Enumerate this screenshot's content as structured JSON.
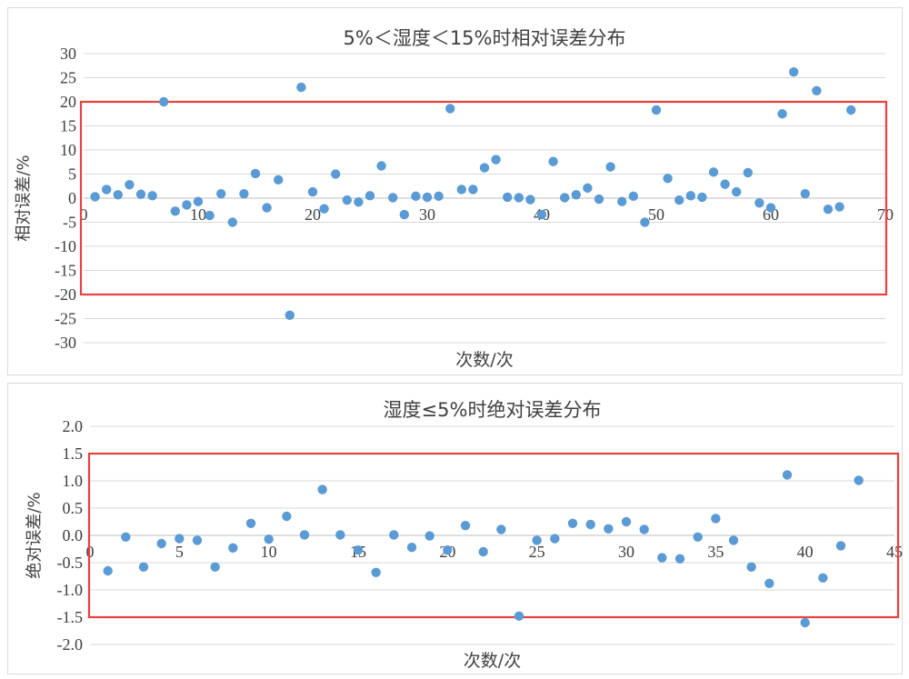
{
  "chart_data": [
    {
      "type": "scatter",
      "title": "5%＜湿度＜15%时相对误差分布",
      "xlabel": "次数/次",
      "ylabel": "相对误差/%",
      "xlim": [
        0,
        70
      ],
      "ylim": [
        -30,
        30
      ],
      "xticks": [
        "0",
        "10",
        "20",
        "30",
        "40",
        "50",
        "60",
        "70"
      ],
      "yticks": [
        "30",
        "25",
        "20",
        "15",
        "10",
        "5",
        "0",
        "-5",
        "-10",
        "-15",
        "-20",
        "-25",
        "-30"
      ],
      "grid": true,
      "marker_color": "#5b9bd5",
      "highlight_box": {
        "y_min": -20,
        "y_max": 20,
        "color": "#e8403f"
      },
      "x": [
        1,
        2,
        3,
        4,
        5,
        6,
        7,
        8,
        9,
        10,
        11,
        12,
        13,
        14,
        15,
        16,
        17,
        18,
        19,
        20,
        21,
        22,
        23,
        24,
        25,
        26,
        27,
        28,
        29,
        30,
        31,
        32,
        33,
        34,
        35,
        36,
        37,
        38,
        39,
        40,
        41,
        42,
        43,
        44,
        45,
        46,
        47,
        48,
        49,
        50,
        51,
        52,
        53,
        54,
        55,
        56,
        57,
        58,
        59,
        60,
        61,
        62,
        63,
        64,
        65,
        66,
        67
      ],
      "y": [
        0.3,
        1.8,
        0.7,
        2.8,
        0.8,
        0.5,
        20,
        -2.7,
        -1.4,
        -0.7,
        -3.6,
        0.9,
        -5,
        0.9,
        5.1,
        -2,
        3.8,
        -24.3,
        23,
        1.3,
        -2.2,
        5,
        -0.4,
        -0.8,
        0.5,
        6.7,
        0.1,
        -3.4,
        0.4,
        0.2,
        0.4,
        18.6,
        1.8,
        1.8,
        6.3,
        8,
        0.2,
        0.1,
        -0.3,
        -3.4,
        7.6,
        0.1,
        0.7,
        2.1,
        -0.2,
        6.5,
        -0.7,
        0.4,
        -5,
        18.3,
        4.1,
        -0.4,
        0.5,
        0.2,
        5.4,
        2.9,
        1.3,
        5.3,
        -1,
        -2,
        17.5,
        26.2,
        0.9,
        22.3,
        -2.3,
        -1.8,
        18.3
      ]
    },
    {
      "type": "scatter",
      "title": "湿度≤5%时绝对误差分布",
      "xlabel": "次数/次",
      "ylabel": "绝对误差/%",
      "xlim": [
        0,
        45
      ],
      "ylim": [
        -2.0,
        2.0
      ],
      "xticks": [
        "0",
        "5",
        "10",
        "15",
        "20",
        "25",
        "30",
        "35",
        "40",
        "45"
      ],
      "yticks": [
        "2.0",
        "1.5",
        "1.0",
        "0.5",
        "0.0",
        "-0.5",
        "-1.0",
        "-1.5",
        "-2.0"
      ],
      "grid": true,
      "marker_color": "#5b9bd5",
      "highlight_box": {
        "y_min": -1.5,
        "y_max": 1.5,
        "color": "#e8403f"
      },
      "x": [
        1,
        2,
        3,
        4,
        5,
        6,
        7,
        8,
        9,
        10,
        11,
        12,
        13,
        14,
        15,
        16,
        17,
        18,
        19,
        20,
        21,
        22,
        23,
        24,
        25,
        26,
        27,
        28,
        29,
        30,
        31,
        32,
        33,
        34,
        35,
        36,
        37,
        38,
        39,
        40,
        41,
        42,
        43
      ],
      "y": [
        -0.65,
        -0.03,
        -0.58,
        -0.15,
        -0.06,
        -0.09,
        -0.58,
        -0.23,
        0.22,
        -0.07,
        0.35,
        0.01,
        0.84,
        0.01,
        -0.27,
        -0.68,
        0.01,
        -0.22,
        -0.01,
        -0.27,
        0.18,
        -0.3,
        0.11,
        -1.48,
        -0.09,
        -0.06,
        0.22,
        0.2,
        0.12,
        0.25,
        0.11,
        -0.41,
        -0.43,
        -0.03,
        0.31,
        -0.09,
        -0.58,
        -0.88,
        1.11,
        -1.6,
        -0.78,
        -0.19,
        1.01
      ]
    }
  ]
}
